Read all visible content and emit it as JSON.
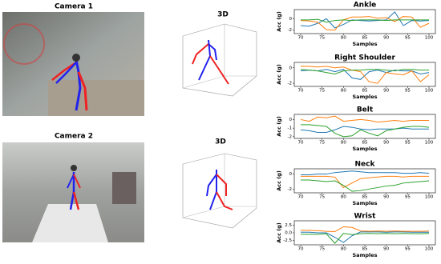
{
  "panels": [
    {
      "title": "Camera 1"
    },
    {
      "title": "3D"
    },
    {
      "title": "Camera 2"
    },
    {
      "title": "3D"
    }
  ],
  "chart_data": [
    {
      "type": "line",
      "title": "Ankle",
      "x_label": "Samples",
      "y_label": "Acc (g)",
      "x": [
        70,
        72,
        74,
        76,
        78,
        80,
        82,
        84,
        86,
        88,
        90,
        92,
        94,
        96,
        98,
        100
      ],
      "xlim": [
        68.5,
        101.5
      ],
      "xticks": [
        70,
        75,
        80,
        85,
        90,
        95,
        100
      ],
      "ylim": [
        -2.6,
        1.6
      ],
      "yticks": [
        0,
        -2
      ],
      "series": [
        {
          "color": "#1f77b4",
          "values": [
            -1.2,
            -1.3,
            -0.8,
            0,
            -1.6,
            -1.0,
            -0.2,
            -0.3,
            -0.4,
            -0.3,
            -0.2,
            1.2,
            -1.2,
            -0.3,
            -0.4,
            -0.3
          ]
        },
        {
          "color": "#ff7f0e",
          "values": [
            -0.3,
            -0.4,
            -0.6,
            -1.9,
            -2.0,
            -0.2,
            0.3,
            0.3,
            0.4,
            0.1,
            0.2,
            -0.5,
            0.4,
            0.3,
            -1.5,
            -0.8
          ]
        },
        {
          "color": "#2ca02c",
          "values": [
            -0.2,
            -0.2,
            -0.1,
            -0.6,
            -0.3,
            -0.2,
            -0.3,
            -0.2,
            -0.2,
            -0.2,
            -0.3,
            -0.2,
            -0.2,
            -0.2,
            -0.2,
            -0.2
          ]
        }
      ]
    },
    {
      "type": "line",
      "title": "Right Shoulder",
      "x_label": "Samples",
      "y_label": "Acc (g)",
      "x": [
        70,
        72,
        74,
        76,
        78,
        80,
        82,
        84,
        86,
        88,
        90,
        92,
        94,
        96,
        98,
        100
      ],
      "xlim": [
        68.5,
        101.5
      ],
      "xticks": [
        70,
        75,
        80,
        85,
        90,
        95,
        100
      ],
      "ylim": [
        -2.4,
        0.7
      ],
      "yticks": [
        0,
        -2
      ],
      "series": [
        {
          "color": "#1f77b4",
          "values": [
            -0.4,
            -0.3,
            -0.4,
            -0.2,
            -0.5,
            -0.2,
            -1.3,
            -1.5,
            -0.5,
            -0.3,
            -0.6,
            -0.3,
            -0.4,
            -0.4,
            -0.8,
            -0.6
          ]
        },
        {
          "color": "#ff7f0e",
          "values": [
            0.2,
            0.2,
            0.1,
            0.2,
            0.0,
            0.1,
            -0.3,
            -0.5,
            -1.8,
            -2.0,
            -0.6,
            -0.8,
            -0.9,
            -0.4,
            -1.8,
            -0.9
          ]
        },
        {
          "color": "#2ca02c",
          "values": [
            -0.2,
            -0.3,
            -0.4,
            -0.6,
            -0.8,
            -0.4,
            -0.3,
            -0.3,
            -0.2,
            -0.2,
            -0.3,
            -0.4,
            -0.2,
            -0.2,
            -0.3,
            -0.3
          ]
        }
      ]
    },
    {
      "type": "line",
      "title": "Belt",
      "x_label": "Samples",
      "y_label": "Acc (g)",
      "x": [
        70,
        72,
        74,
        76,
        78,
        80,
        82,
        84,
        86,
        88,
        90,
        92,
        94,
        96,
        98,
        100
      ],
      "xlim": [
        68.5,
        101.5
      ],
      "xticks": [
        70,
        75,
        80,
        85,
        90,
        95,
        100
      ],
      "ylim": [
        -2.2,
        0.6
      ],
      "yticks": [
        0,
        -1,
        -2
      ],
      "series": [
        {
          "color": "#1f77b4",
          "values": [
            -1.2,
            -1.3,
            -1.5,
            -1.5,
            -1.2,
            -0.8,
            -0.9,
            -1.1,
            -1.2,
            -1.1,
            -1.1,
            -1.1,
            -1.0,
            -1.1,
            -1.1,
            -1.1
          ]
        },
        {
          "color": "#ff7f0e",
          "values": [
            0.0,
            -0.2,
            0.3,
            0.2,
            0.4,
            -0.2,
            -0.1,
            0.0,
            -0.1,
            -0.3,
            -0.2,
            -0.1,
            -0.2,
            -0.1,
            -0.1,
            -0.1
          ]
        },
        {
          "color": "#2ca02c",
          "values": [
            -0.6,
            -0.6,
            -0.7,
            -0.8,
            -1.6,
            -2.0,
            -1.9,
            -1.2,
            -1.6,
            -1.9,
            -1.3,
            -1.1,
            -0.9,
            -0.8,
            -0.8,
            -0.9
          ]
        }
      ]
    },
    {
      "type": "line",
      "title": "Neck",
      "x_label": "Samples",
      "y_label": "Acc (g)",
      "x": [
        70,
        72,
        74,
        76,
        78,
        80,
        82,
        84,
        86,
        88,
        90,
        92,
        94,
        96,
        98,
        100
      ],
      "xlim": [
        68.5,
        101.5
      ],
      "xticks": [
        70,
        75,
        80,
        85,
        90,
        95,
        100
      ],
      "ylim": [
        -2.5,
        0.7
      ],
      "yticks": [
        0,
        -2
      ],
      "series": [
        {
          "color": "#1f77b4",
          "values": [
            -0.1,
            -0.1,
            0.0,
            0.0,
            0.2,
            0.3,
            0.4,
            0.3,
            0.2,
            0.2,
            0.2,
            0.2,
            0.1,
            0.1,
            0.2,
            0.1
          ]
        },
        {
          "color": "#ff7f0e",
          "values": [
            -0.3,
            -0.3,
            -0.3,
            -0.3,
            -0.4,
            -1.8,
            -1.2,
            -0.6,
            -0.5,
            -0.4,
            -0.3,
            -0.3,
            -0.4,
            -0.3,
            -0.3,
            -0.3
          ]
        },
        {
          "color": "#2ca02c",
          "values": [
            -0.8,
            -0.8,
            -0.9,
            -1.0,
            -0.9,
            -1.5,
            -2.3,
            -2.2,
            -2.0,
            -1.8,
            -1.6,
            -1.5,
            -1.2,
            -1.1,
            -1.0,
            -0.9
          ]
        }
      ]
    },
    {
      "type": "line",
      "title": "Wrist",
      "x_label": "Samples",
      "y_label": "Acc (g)",
      "x": [
        70,
        72,
        74,
        76,
        78,
        80,
        82,
        84,
        86,
        88,
        90,
        92,
        94,
        96,
        98,
        100
      ],
      "xlim": [
        68.5,
        101.5
      ],
      "xticks": [
        70,
        75,
        80,
        85,
        90,
        95,
        100
      ],
      "ylim": [
        -4,
        4
      ],
      "yticks": [
        2.5,
        {
          "value": 0,
          "label": "0.0"
        },
        -2.5
      ],
      "series": [
        {
          "color": "#1f77b4",
          "values": [
            0.2,
            0.2,
            0.0,
            0.0,
            -1.5,
            -3.2,
            -1.0,
            0.3,
            0.3,
            0.3,
            0.2,
            0.3,
            0.3,
            0.2,
            0.2,
            0.2
          ]
        },
        {
          "color": "#ff7f0e",
          "values": [
            0.8,
            0.8,
            0.7,
            0.5,
            0.4,
            2.0,
            1.8,
            0.6,
            0.5,
            0.6,
            0.5,
            0.6,
            0.5,
            0.5,
            0.5,
            0.6
          ]
        },
        {
          "color": "#2ca02c",
          "values": [
            -0.5,
            -0.5,
            -0.5,
            -0.3,
            -3.5,
            -0.2,
            -0.6,
            -0.3,
            -0.2,
            -0.3,
            -0.2,
            -0.3,
            -0.2,
            -0.3,
            -0.3,
            -0.2
          ]
        }
      ]
    }
  ]
}
